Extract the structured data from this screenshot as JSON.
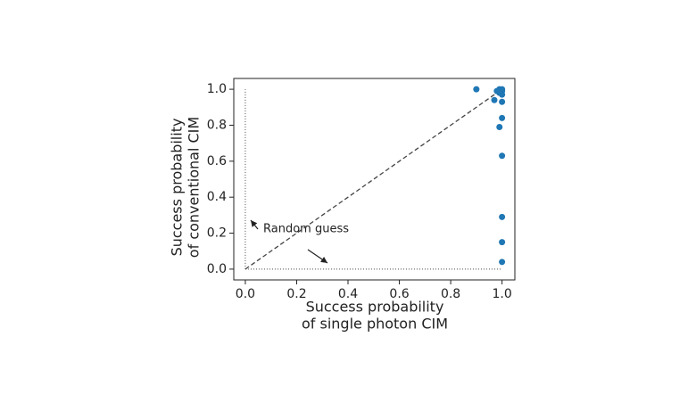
{
  "chart_data": {
    "type": "scatter",
    "x": [
      0.9,
      0.97,
      0.99,
      1.0,
      1.0,
      1.0,
      1.0,
      1.0,
      1.0,
      0.99,
      1.0,
      1.0,
      0.99,
      1.0,
      0.98
    ],
    "values": [
      1.0,
      0.94,
      0.79,
      0.84,
      0.93,
      0.63,
      0.29,
      0.15,
      0.04,
      1.0,
      1.0,
      0.99,
      0.98,
      0.97,
      0.99
    ],
    "color": "#1f77b4",
    "xlim": [
      -0.045,
      1.05
    ],
    "ylim": [
      -0.06,
      1.06
    ],
    "xticks": [
      {
        "value": 0,
        "label": "0.0"
      },
      0.2,
      0.4,
      0.6,
      0.8,
      {
        "value": 1,
        "label": "1.0"
      }
    ],
    "yticks": [
      {
        "value": 0,
        "label": "0.0"
      },
      0.2,
      0.4,
      0.6,
      0.8,
      {
        "value": 1,
        "label": "1.0"
      }
    ],
    "xlabel": [
      "Success probability",
      "of single photon CIM"
    ],
    "ylabel": [
      "Success probability",
      "of conventional CIM"
    ],
    "annotation": "Random guess"
  }
}
